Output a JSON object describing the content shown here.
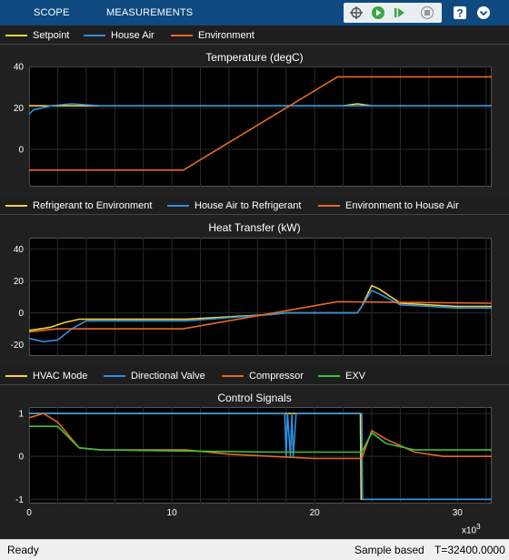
{
  "toolstrip": {
    "tabs": [
      "SCOPE",
      "MEASUREMENTS"
    ],
    "buttons": [
      {
        "name": "signal-select-icon"
      },
      {
        "name": "run-icon"
      },
      {
        "name": "step-forward-icon"
      },
      {
        "name": "stop-icon"
      },
      {
        "name": "help-icon"
      },
      {
        "name": "expand-icon"
      }
    ]
  },
  "status": {
    "left": "Ready",
    "mode": "Sample based",
    "time": "T=32400.0000"
  },
  "colors": {
    "yellow": "#f2d440",
    "blue": "#2f8fe0",
    "orange": "#e56a25",
    "green": "#3fc23a"
  },
  "chart_data": [
    {
      "type": "line",
      "title": "Temperature (degC)",
      "ylim": [
        -18,
        40
      ],
      "yticks": [
        40,
        20,
        0
      ],
      "xlim": [
        0,
        32400
      ],
      "legend": "top",
      "grid": true,
      "series": [
        {
          "name": "Setpoint",
          "color": "#f2d440",
          "x": [
            0,
            2000,
            4000,
            22000,
            23000,
            24000,
            32400
          ],
          "y": [
            21,
            21,
            21,
            21,
            22,
            21,
            21
          ]
        },
        {
          "name": "House Air",
          "color": "#2f8fe0",
          "x": [
            0,
            300,
            1500,
            3000,
            5000,
            22000,
            23500,
            24500,
            32400
          ],
          "y": [
            17,
            19,
            21,
            22,
            21,
            21,
            21,
            21,
            21
          ]
        },
        {
          "name": "Environment",
          "color": "#e56a25",
          "x": [
            0,
            10800,
            21600,
            32400
          ],
          "y": [
            -10,
            -10,
            35,
            35
          ]
        }
      ]
    },
    {
      "type": "line",
      "title": "Heat Transfer (kW)",
      "ylim": [
        -27,
        47
      ],
      "yticks": [
        40,
        20,
        0,
        -20
      ],
      "xlim": [
        0,
        32400
      ],
      "legend": "top",
      "grid": true,
      "series": [
        {
          "name": "Refrigerant to Environment",
          "color": "#f2d440",
          "x": [
            0,
            1500,
            2500,
            3500,
            5000,
            11000,
            17000,
            18000,
            23000,
            23300,
            24000,
            24500,
            26000,
            28000,
            30000,
            32400
          ],
          "y": [
            -11,
            -9,
            -6,
            -4,
            -4,
            -4,
            -1,
            0,
            0,
            4,
            17,
            15,
            6,
            5,
            4,
            4
          ]
        },
        {
          "name": "House Air to Refrigerant",
          "color": "#2f8fe0",
          "x": [
            0,
            1000,
            2000,
            3000,
            4000,
            5000,
            11000,
            17000,
            18000,
            23000,
            23300,
            24000,
            24500,
            26000,
            28000,
            30000,
            32400
          ],
          "y": [
            -16,
            -18,
            -17,
            -10,
            -5,
            -5,
            -5,
            -1,
            0,
            0,
            4,
            14,
            12,
            5,
            4,
            3,
            3
          ]
        },
        {
          "name": "Environment to House Air",
          "color": "#e56a25",
          "x": [
            0,
            2000,
            10800,
            21600,
            32400
          ],
          "y": [
            -12,
            -10,
            -10,
            7,
            6
          ]
        }
      ]
    },
    {
      "type": "line",
      "title": "Control Signals",
      "ylim": [
        -1.1,
        1.15
      ],
      "yticks": [
        1,
        0,
        -1
      ],
      "xlim": [
        0,
        32400
      ],
      "xticks": [
        0,
        10,
        20,
        30
      ],
      "xscale_label": "x10^3",
      "legend": "top",
      "grid": true,
      "series": [
        {
          "name": "HVAC Mode",
          "color": "#f2d440",
          "x": [
            0,
            23200,
            23250,
            32400
          ],
          "y": [
            1,
            1,
            -1,
            -1
          ]
        },
        {
          "name": "Directional Valve",
          "color": "#2f8fe0",
          "x": [
            0,
            17900,
            18000,
            18100,
            18300,
            18400,
            18500,
            18700,
            23300,
            23350,
            32400
          ],
          "y": [
            1,
            1,
            0,
            1,
            0,
            1,
            0,
            1,
            1,
            -1,
            -1
          ]
        },
        {
          "name": "Compressor",
          "color": "#e56a25",
          "x": [
            0,
            1000,
            2000,
            3500,
            5000,
            11000,
            14000,
            17000,
            20000,
            23300,
            24000,
            25000,
            27000,
            29000,
            32400
          ],
          "y": [
            0.9,
            1.0,
            0.8,
            0.2,
            0.15,
            0.15,
            0.05,
            0.0,
            -0.05,
            -0.05,
            0.6,
            0.4,
            0.1,
            0.0,
            0.0
          ]
        },
        {
          "name": "EXV",
          "color": "#3fc23a",
          "x": [
            0,
            2000,
            3500,
            5000,
            17000,
            23300,
            24000,
            25000,
            27000,
            32400
          ],
          "y": [
            0.7,
            0.7,
            0.2,
            0.15,
            0.1,
            0.1,
            0.55,
            0.3,
            0.15,
            0.15
          ]
        }
      ]
    }
  ]
}
